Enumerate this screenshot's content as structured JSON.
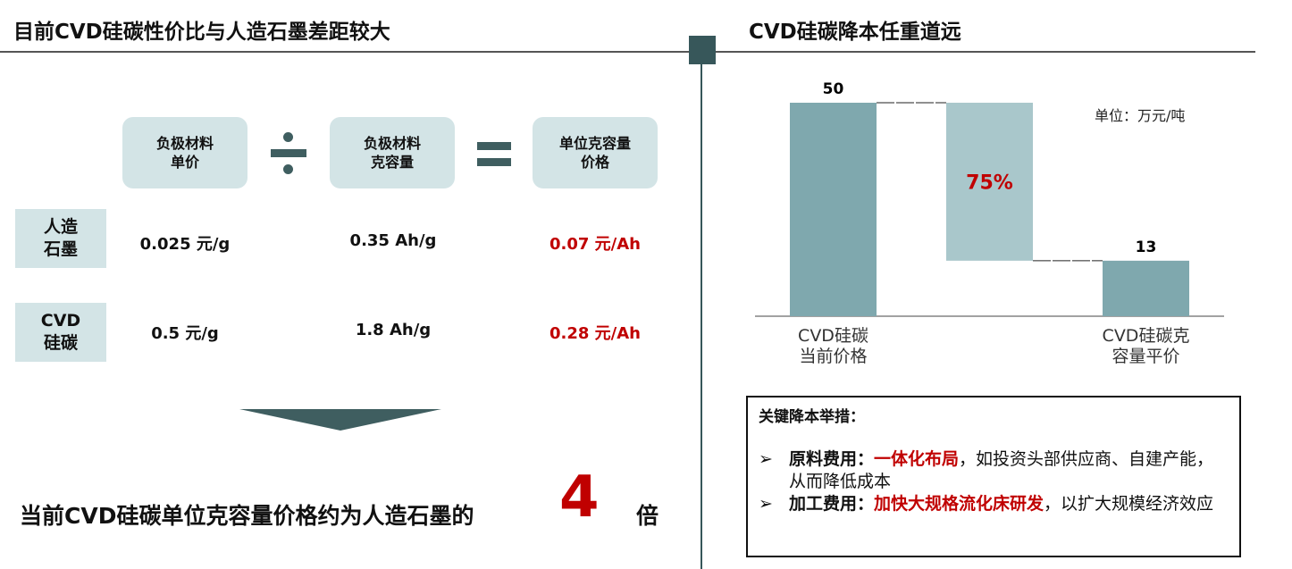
{
  "left": {
    "title": "目前CVD硅碳性价比与人造石墨差距较大",
    "headers": [
      "负极材料\n单价",
      "负极材料\n克容量",
      "单位克容量\n价格"
    ],
    "rows": [
      {
        "label": "人造\n石墨",
        "cells": [
          "0.025 元/g",
          "0.35 Ah/g",
          "0.07 元/Ah"
        ]
      },
      {
        "label": "CVD\n硅碳",
        "cells": [
          "0.5 元/g",
          "1.8 Ah/g",
          "0.28 元/Ah"
        ]
      }
    ],
    "conclusion": {
      "text": "当前CVD硅碳单位克容量价格约为人造石墨的",
      "multiple": "4",
      "suffix": "倍"
    }
  },
  "chart_data": {
    "type": "waterfall",
    "title": "CVD硅碳降本任重道远",
    "unit": "单位：万元/吨",
    "categories": [
      "CVD硅碳\n当前价格",
      null,
      "CVD硅碳克\n容量平价"
    ],
    "values": [
      50,
      -37,
      13
    ],
    "measure": [
      "absolute",
      "relative",
      "total"
    ],
    "colors": [
      "#7fa8ae",
      "#a9c7cb",
      "#7fa8ae"
    ],
    "annotation": "75%"
  },
  "measures": {
    "title": "关键降本举措：",
    "items": [
      {
        "label": "原料费用：",
        "highlight": "一体化布局",
        "text": "，如投资头部供应商、自建产能，从而降低成本"
      },
      {
        "label": "加工费用：",
        "highlight": "加快大规格流化床研发",
        "text": "，以扩大规模经济效应"
      }
    ]
  }
}
